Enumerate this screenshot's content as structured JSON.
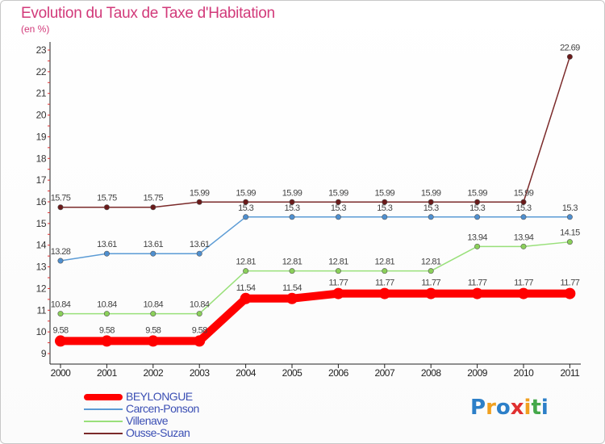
{
  "chart_data": {
    "type": "line",
    "title": "Evolution du Taux de Taxe d'Habitation",
    "ylabel": "(en %)",
    "xlabel": "",
    "x": [
      "2000",
      "2001",
      "2002",
      "2003",
      "2004",
      "2005",
      "2006",
      "2007",
      "2008",
      "2009",
      "2010",
      "2011"
    ],
    "ylim": [
      9,
      23
    ],
    "yticks": [
      "9",
      "10",
      "11",
      "12",
      "13",
      "14",
      "15",
      "16",
      "17",
      "18",
      "19",
      "20",
      "21",
      "22",
      "23"
    ],
    "grid": false,
    "legend_position": "bottom-left",
    "series": [
      {
        "name": "BEYLONGUE",
        "color": "#ff0000",
        "values": [
          9.58,
          9.58,
          9.58,
          9.58,
          11.54,
          11.54,
          11.77,
          11.77,
          11.77,
          11.77,
          11.77,
          11.77
        ],
        "labels": [
          "9.58",
          "9.58",
          "9.58",
          "9.58",
          "11.54",
          "11.54",
          "11.77",
          "11.77",
          "11.77",
          "11.77",
          "11.77",
          "11.77"
        ]
      },
      {
        "name": "Carcen-Ponson",
        "color": "#5b9bd5",
        "values": [
          13.28,
          13.61,
          13.61,
          13.61,
          15.3,
          15.3,
          15.3,
          15.3,
          15.3,
          15.3,
          15.3,
          15.3
        ],
        "labels": [
          "13.28",
          "13.61",
          "13.61",
          "13.61",
          "15.3",
          "15.3",
          "15.3",
          "15.3",
          "15.3",
          "15.3",
          "15.3",
          "15.3"
        ]
      },
      {
        "name": "Villenave",
        "color": "#99e07a",
        "values": [
          10.84,
          10.84,
          10.84,
          10.84,
          12.81,
          12.81,
          12.81,
          12.81,
          12.81,
          13.94,
          13.94,
          14.15
        ],
        "labels": [
          "10.84",
          "10.84",
          "10.84",
          "10.84",
          "12.81",
          "12.81",
          "12.81",
          "12.81",
          "12.81",
          "13.94",
          "13.94",
          "14.15"
        ]
      },
      {
        "name": "Ousse-Suzan",
        "color": "#7b2a2a",
        "values": [
          15.75,
          15.75,
          15.75,
          15.99,
          15.99,
          15.99,
          15.99,
          15.99,
          15.99,
          15.99,
          15.99,
          22.69
        ],
        "labels": [
          "15.75",
          "15.75",
          "15.75",
          "15.99",
          "15.99",
          "15.99",
          "15.99",
          "15.99",
          "15.99",
          "15.99",
          "15.99",
          "22.69"
        ]
      }
    ]
  },
  "legend": {
    "items": [
      {
        "label": "BEYLONGUE",
        "color": "#ff0000"
      },
      {
        "label": "Carcen-Ponson",
        "color": "#5b9bd5"
      },
      {
        "label": "Villenave",
        "color": "#99e07a"
      },
      {
        "label": "Ousse-Suzan",
        "color": "#7b2a2a"
      }
    ]
  },
  "brand": {
    "letters": [
      {
        "ch": "P",
        "color": "#2c7fc8"
      },
      {
        "ch": "r",
        "color": "#f0a020"
      },
      {
        "ch": "o",
        "color": "#2c7fc8"
      },
      {
        "ch": "x",
        "color": "#e03030"
      },
      {
        "ch": "i",
        "color": "#f0a020"
      },
      {
        "ch": "t",
        "color": "#44a84a"
      },
      {
        "ch": "i",
        "color": "#2c7fc8"
      }
    ]
  }
}
